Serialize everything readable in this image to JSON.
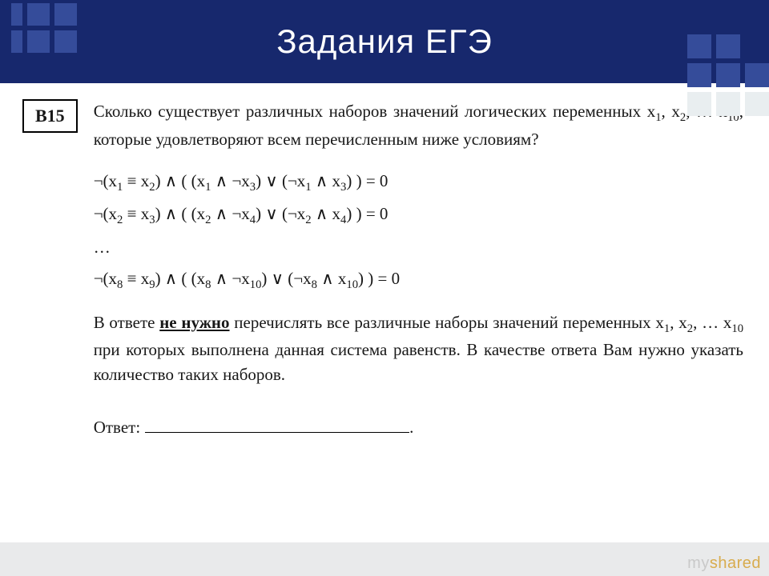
{
  "header": {
    "title": "Задания ЕГЭ",
    "background_color": "#17286d",
    "title_color": "#ffffff",
    "title_fontsize": 42,
    "square_color_dark": "#354c9a",
    "square_color_light": "#e9eef0"
  },
  "problem": {
    "badge": "B15",
    "intro_pre": "Сколько существует различных наборов значений логических переменных x",
    "intro_sub1": "1",
    "intro_mid1": ", x",
    "intro_sub2": "2",
    "intro_mid2": ", … x",
    "intro_sub3": "10",
    "intro_post": ", которые удовлетворяют всем перечисленным ниже условиям?",
    "equations": [
      {
        "a": "1",
        "b": "2",
        "c": "1",
        "d": "3",
        "e": "1",
        "f": "3"
      },
      {
        "a": "2",
        "b": "3",
        "c": "2",
        "d": "4",
        "e": "2",
        "f": "4"
      }
    ],
    "ellipsis": "…",
    "last_eq": {
      "a": "8",
      "b": "9",
      "c": "8",
      "d": "10",
      "e": "8",
      "f": "10"
    },
    "note_pre": "В ответе ",
    "note_bold": "не нужно",
    "note_mid1": " перечислять все различные наборы значений переменных x",
    "note_s1": "1",
    "note_mid2": ", x",
    "note_s2": "2",
    "note_mid3": ", … x",
    "note_s3": "10",
    "note_post": " при которых выполнена данная система равенств. В качестве ответа Вам нужно указать количество таких наборов.",
    "answer_label": "Ответ:",
    "answer_period": "."
  },
  "logic_symbols": {
    "not": "¬",
    "and": "∧",
    "or": "∨",
    "equiv": "≡",
    "equals_zero": " = 0"
  },
  "watermark": {
    "part1": "my",
    "part2": "shared"
  },
  "colors": {
    "text": "#181818",
    "footer_bg": "#e9eaeb",
    "watermark_gray": "#c9c9c9",
    "watermark_gold": "#d8ac4e"
  }
}
